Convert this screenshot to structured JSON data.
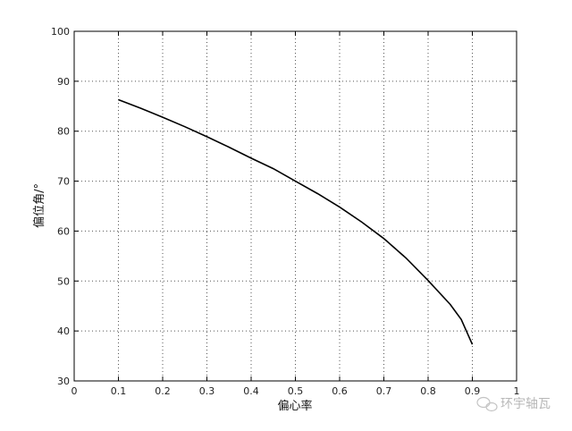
{
  "chart_data": {
    "type": "line",
    "title": "",
    "xlabel": "偏心率",
    "ylabel": "偏位角/°",
    "xlim": [
      0,
      1
    ],
    "ylim": [
      30,
      100
    ],
    "xticks": [
      "0",
      "0.1",
      "0.2",
      "0.3",
      "0.4",
      "0.5",
      "0.6",
      "0.7",
      "0.8",
      "0.9",
      "1"
    ],
    "yticks": [
      "30",
      "40",
      "50",
      "60",
      "70",
      "80",
      "90",
      "100"
    ],
    "grid": true,
    "grid_style": "dotted",
    "line_color": "#000000",
    "series": [
      {
        "x": [
          0.1,
          0.15,
          0.2,
          0.25,
          0.3,
          0.35,
          0.4,
          0.45,
          0.5,
          0.55,
          0.6,
          0.65,
          0.7,
          0.75,
          0.8,
          0.85,
          0.875,
          0.9
        ],
        "y": [
          86.3,
          84.6,
          82.8,
          80.9,
          78.9,
          76.8,
          74.6,
          72.5,
          70.0,
          67.5,
          64.8,
          61.8,
          58.5,
          54.6,
          50.1,
          45.3,
          42.3,
          37.3
        ]
      }
    ]
  },
  "watermark": {
    "text": "环宇轴瓦",
    "icon": "wechat-logo-icon"
  }
}
